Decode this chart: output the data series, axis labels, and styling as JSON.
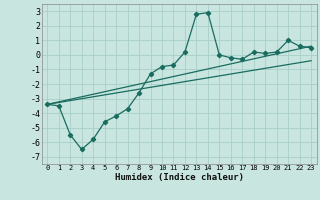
{
  "xlabel": "Humidex (Indice chaleur)",
  "background_color": "#c8e6df",
  "grid_color": "#a8cfc8",
  "line_color": "#1a6b60",
  "xlim": [
    -0.5,
    23.5
  ],
  "ylim": [
    -7.5,
    3.5
  ],
  "xticks": [
    0,
    1,
    2,
    3,
    4,
    5,
    6,
    7,
    8,
    9,
    10,
    11,
    12,
    13,
    14,
    15,
    16,
    17,
    18,
    19,
    20,
    21,
    22,
    23
  ],
  "yticks": [
    -7,
    -6,
    -5,
    -4,
    -3,
    -2,
    -1,
    0,
    1,
    2,
    3
  ],
  "series1_x": [
    0,
    1,
    2,
    3,
    4,
    5,
    6,
    7,
    8,
    9,
    10,
    11,
    12,
    13,
    14,
    15,
    16,
    17,
    18,
    19,
    20,
    21,
    22,
    23
  ],
  "series1_y": [
    -3.4,
    -3.5,
    -5.5,
    -6.5,
    -5.8,
    -4.6,
    -4.2,
    -3.7,
    -2.6,
    -1.3,
    -0.8,
    -0.7,
    0.2,
    2.8,
    2.9,
    0.0,
    -0.2,
    -0.3,
    0.2,
    0.1,
    0.2,
    1.0,
    0.6,
    0.5
  ],
  "series2_x": [
    0,
    23
  ],
  "series2_y": [
    -3.4,
    0.6
  ],
  "series3_x": [
    0,
    23
  ],
  "series3_y": [
    -3.4,
    -0.4
  ]
}
